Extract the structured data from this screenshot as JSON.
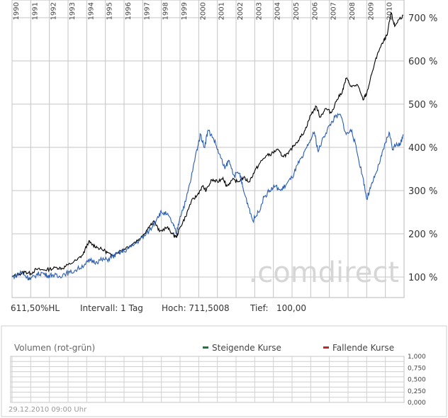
{
  "chart_data": [
    {
      "type": "line",
      "x_years": [
        "1990",
        "1991",
        "1992",
        "1993",
        "1994",
        "1995",
        "1996",
        "1997",
        "1998",
        "1999",
        "2000",
        "2001",
        "2002",
        "2003",
        "2004",
        "2005",
        "2006",
        "2007",
        "2008",
        "2009",
        "2010"
      ],
      "y_ticks": [
        "100 %",
        "200 %",
        "300 %",
        "400 %",
        "500 %",
        "600 %",
        "700 %"
      ],
      "ylim": [
        100,
        720
      ],
      "grid": true,
      "series": [
        {
          "color": "#000000",
          "points": [
            [
              1990.0,
              100
            ],
            [
              1990.4,
              107
            ],
            [
              1990.7,
              112
            ],
            [
              1991.0,
              108
            ],
            [
              1991.3,
              118
            ],
            [
              1991.7,
              116
            ],
            [
              1992.0,
              118
            ],
            [
              1992.4,
              122
            ],
            [
              1992.7,
              120
            ],
            [
              1993.0,
              128
            ],
            [
              1993.5,
              140
            ],
            [
              1993.8,
              152
            ],
            [
              1994.1,
              182
            ],
            [
              1994.3,
              175
            ],
            [
              1994.6,
              168
            ],
            [
              1995.0,
              160
            ],
            [
              1995.3,
              150
            ],
            [
              1995.7,
              158
            ],
            [
              1996.0,
              165
            ],
            [
              1996.5,
              178
            ],
            [
              1997.0,
              195
            ],
            [
              1997.3,
              215
            ],
            [
              1997.6,
              230
            ],
            [
              1997.9,
              205
            ],
            [
              1998.3,
              215
            ],
            [
              1998.6,
              200
            ],
            [
              1998.8,
              192
            ],
            [
              1999.0,
              215
            ],
            [
              1999.3,
              240
            ],
            [
              1999.6,
              275
            ],
            [
              1999.9,
              288
            ],
            [
              2000.2,
              310
            ],
            [
              2000.4,
              300
            ],
            [
              2000.7,
              325
            ],
            [
              2001.0,
              320
            ],
            [
              2001.3,
              330
            ],
            [
              2001.5,
              310
            ],
            [
              2001.8,
              325
            ],
            [
              2002.1,
              320
            ],
            [
              2002.4,
              330
            ],
            [
              2002.7,
              320
            ],
            [
              2003.0,
              345
            ],
            [
              2003.3,
              365
            ],
            [
              2003.6,
              380
            ],
            [
              2003.9,
              385
            ],
            [
              2004.2,
              395
            ],
            [
              2004.5,
              380
            ],
            [
              2004.8,
              385
            ],
            [
              2005.1,
              405
            ],
            [
              2005.4,
              420
            ],
            [
              2005.7,
              440
            ],
            [
              2006.0,
              475
            ],
            [
              2006.3,
              495
            ],
            [
              2006.5,
              470
            ],
            [
              2006.8,
              490
            ],
            [
              2007.1,
              480
            ],
            [
              2007.4,
              510
            ],
            [
              2007.7,
              530
            ],
            [
              2007.9,
              560
            ],
            [
              2008.2,
              540
            ],
            [
              2008.5,
              545
            ],
            [
              2008.8,
              510
            ],
            [
              2009.0,
              525
            ],
            [
              2009.3,
              575
            ],
            [
              2009.6,
              620
            ],
            [
              2009.9,
              645
            ],
            [
              2010.1,
              660
            ],
            [
              2010.3,
              712
            ],
            [
              2010.5,
              680
            ],
            [
              2010.7,
              695
            ],
            [
              2010.95,
              705
            ]
          ]
        },
        {
          "color": "#2a5db0",
          "points": [
            [
              1990.0,
              100
            ],
            [
              1990.3,
              105
            ],
            [
              1990.5,
              112
            ],
            [
              1990.8,
              100
            ],
            [
              1991.0,
              95
            ],
            [
              1991.3,
              105
            ],
            [
              1991.6,
              110
            ],
            [
              1991.9,
              103
            ],
            [
              1992.2,
              105
            ],
            [
              1992.5,
              100
            ],
            [
              1992.8,
              108
            ],
            [
              1993.1,
              110
            ],
            [
              1993.5,
              118
            ],
            [
              1993.9,
              130
            ],
            [
              1994.2,
              138
            ],
            [
              1994.5,
              135
            ],
            [
              1994.8,
              140
            ],
            [
              1995.1,
              140
            ],
            [
              1995.4,
              148
            ],
            [
              1995.7,
              155
            ],
            [
              1996.0,
              160
            ],
            [
              1996.4,
              170
            ],
            [
              1996.8,
              185
            ],
            [
              1997.1,
              195
            ],
            [
              1997.5,
              215
            ],
            [
              1997.8,
              240
            ],
            [
              1998.0,
              250
            ],
            [
              1998.3,
              245
            ],
            [
              1998.6,
              225
            ],
            [
              1998.8,
              200
            ],
            [
              1999.0,
              240
            ],
            [
              1999.3,
              275
            ],
            [
              1999.6,
              330
            ],
            [
              1999.9,
              395
            ],
            [
              2000.1,
              430
            ],
            [
              2000.3,
              400
            ],
            [
              2000.5,
              440
            ],
            [
              2000.8,
              420
            ],
            [
              2001.1,
              385
            ],
            [
              2001.4,
              350
            ],
            [
              2001.6,
              370
            ],
            [
              2001.9,
              335
            ],
            [
              2002.2,
              340
            ],
            [
              2002.4,
              300
            ],
            [
              2002.7,
              260
            ],
            [
              2002.9,
              230
            ],
            [
              2003.2,
              250
            ],
            [
              2003.5,
              285
            ],
            [
              2003.8,
              300
            ],
            [
              2004.1,
              310
            ],
            [
              2004.4,
              300
            ],
            [
              2004.7,
              315
            ],
            [
              2005.0,
              330
            ],
            [
              2005.3,
              360
            ],
            [
              2005.6,
              380
            ],
            [
              2005.9,
              410
            ],
            [
              2006.2,
              435
            ],
            [
              2006.4,
              390
            ],
            [
              2006.7,
              425
            ],
            [
              2007.0,
              450
            ],
            [
              2007.3,
              470
            ],
            [
              2007.6,
              475
            ],
            [
              2007.9,
              430
            ],
            [
              2008.2,
              440
            ],
            [
              2008.5,
              385
            ],
            [
              2008.8,
              330
            ],
            [
              2009.0,
              280
            ],
            [
              2009.2,
              305
            ],
            [
              2009.5,
              340
            ],
            [
              2009.8,
              380
            ],
            [
              2010.0,
              410
            ],
            [
              2010.2,
              435
            ],
            [
              2010.4,
              395
            ],
            [
              2010.6,
              410
            ],
            [
              2010.8,
              405
            ],
            [
              2010.95,
              430
            ]
          ]
        }
      ],
      "watermark": ".comdirect"
    },
    {
      "type": "bar",
      "title": "Volumen (rot-grün)",
      "y_ticks": [
        "1,000",
        "0,750",
        "0,500",
        "0,250",
        "0,000"
      ],
      "legend": [
        {
          "label": "Steigende Kurse",
          "color": "#1a7a3a"
        },
        {
          "label": "Fallende Kurse",
          "color": "#c0282d"
        }
      ],
      "values": []
    }
  ],
  "stats": {
    "hl": "611,50%HL",
    "intervall": "Intervall: 1 Tag",
    "hoch": "Hoch: 711,5008",
    "tief": "Tief:",
    "tief_value": "100,00"
  },
  "timestamp": "29.12.2010 09:00 Uhr"
}
